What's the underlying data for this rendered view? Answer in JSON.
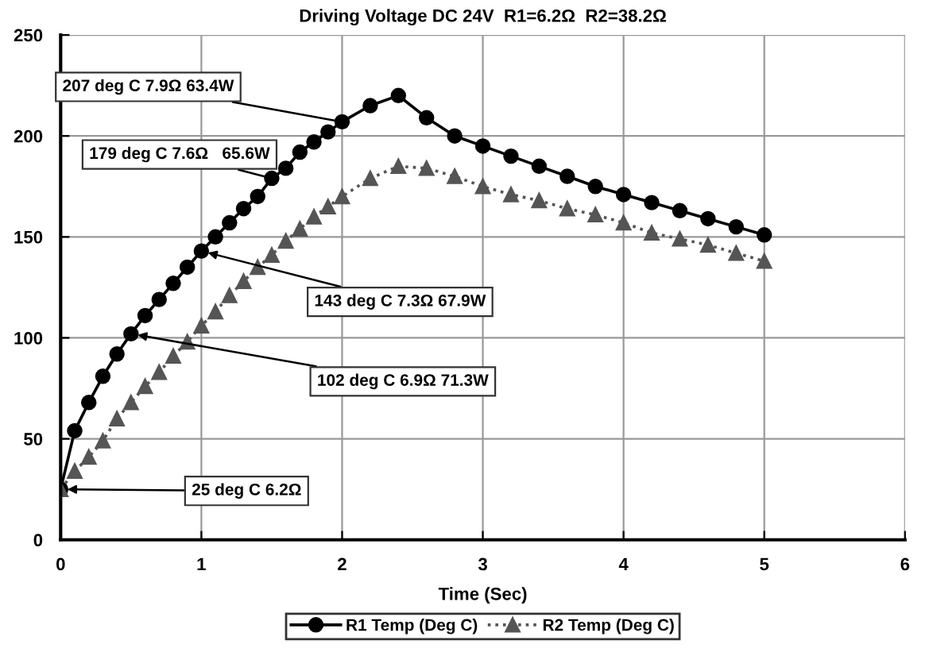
{
  "chart_data": {
    "type": "line",
    "title": "Driving Voltage DC 24V  R1=6.2Ω  R2=38.2Ω",
    "xlabel": "Time (Sec)",
    "xlim": [
      0,
      6
    ],
    "xticks": [
      0,
      1,
      2,
      3,
      4,
      5,
      6
    ],
    "ylim": [
      0,
      250
    ],
    "yticks": [
      0,
      50,
      100,
      150,
      200,
      250
    ],
    "grid": true,
    "legend": "bottom",
    "series": [
      {
        "name": "R1 Temp (Deg C)",
        "color": "#000000",
        "marker": "circle",
        "line_style": "solid",
        "x": [
          0,
          0.1,
          0.2,
          0.3,
          0.4,
          0.5,
          0.6,
          0.7,
          0.8,
          0.9,
          1.0,
          1.1,
          1.2,
          1.3,
          1.4,
          1.5,
          1.6,
          1.7,
          1.8,
          1.9,
          2.0,
          2.2,
          2.4,
          2.6,
          2.8,
          3.0,
          3.2,
          3.4,
          3.6,
          3.8,
          4.0,
          4.2,
          4.4,
          4.6,
          4.8,
          5.0
        ],
        "values": [
          25,
          54,
          68,
          81,
          92,
          102,
          111,
          119,
          127,
          135,
          143,
          150,
          157,
          164,
          170,
          179,
          184,
          192,
          197,
          202,
          207,
          215,
          220,
          209,
          200,
          195,
          190,
          185,
          180,
          175,
          171,
          167,
          163,
          159,
          155,
          151
        ]
      },
      {
        "name": "R2 Temp (Deg C)",
        "color": "#555555",
        "marker": "triangle",
        "line_style": "dotted",
        "x": [
          0,
          0.1,
          0.2,
          0.3,
          0.4,
          0.5,
          0.6,
          0.7,
          0.8,
          0.9,
          1.0,
          1.1,
          1.2,
          1.3,
          1.4,
          1.5,
          1.6,
          1.7,
          1.8,
          1.9,
          2.0,
          2.2,
          2.4,
          2.6,
          2.8,
          3.0,
          3.2,
          3.4,
          3.6,
          3.8,
          4.0,
          4.2,
          4.4,
          4.6,
          4.8,
          5.0
        ],
        "values": [
          25,
          34,
          41,
          49,
          60,
          68,
          76,
          83,
          91,
          98,
          106,
          113,
          121,
          128,
          135,
          141,
          148,
          154,
          160,
          165,
          170,
          179,
          185,
          184,
          180,
          175,
          171,
          168,
          164,
          161,
          157,
          152,
          149,
          146,
          142,
          138
        ]
      }
    ],
    "annotations": [
      {
        "text": "207 deg C 7.9Ω 63.4W",
        "x": 2.0,
        "y": 207
      },
      {
        "text": "179 deg C 7.6Ω   65.6W",
        "x": 1.5,
        "y": 179
      },
      {
        "text": "143 deg C 7.3Ω 67.9W",
        "x": 1.0,
        "y": 143
      },
      {
        "text": "102 deg C 6.9Ω 71.3W",
        "x": 0.5,
        "y": 102
      },
      {
        "text": "25 deg C 6.2Ω",
        "x": 0,
        "y": 25
      }
    ]
  }
}
